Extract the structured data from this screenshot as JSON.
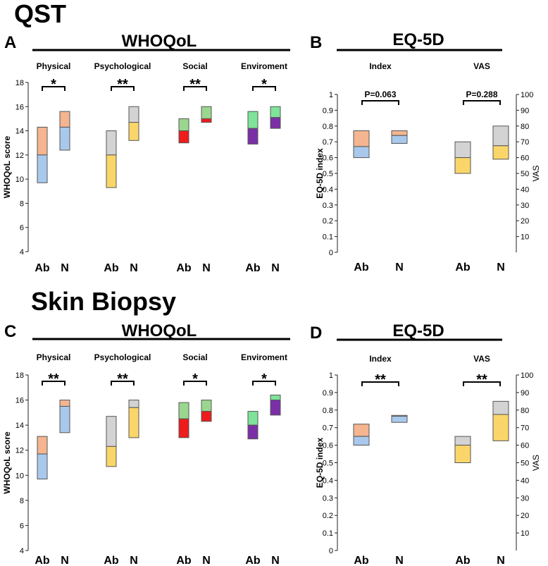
{
  "section_titles": {
    "qst": "QST",
    "biopsy": "Skin Biopsy"
  },
  "panel_letters": {
    "a": "A",
    "b": "B",
    "c": "C",
    "d": "D"
  },
  "panel_headers": {
    "a": "WHOQoL",
    "b": "EQ-5D",
    "c": "WHOQoL",
    "d": "EQ-5D"
  },
  "colors": {
    "physical_upper": "#f4b590",
    "physical_lower": "#a9c9ec",
    "psych_upper": "#d3d3d3",
    "psych_lower": "#fad66a",
    "social_upper": "#9bd68f",
    "social_lower": "#ee1c1c",
    "env_upper": "#7fe39a",
    "env_lower": "#7b2fa6",
    "vas_upper": "#d3d3d3",
    "vas_lower": "#fad66a",
    "index_upper": "#f4b590",
    "index_lower": "#a9c9ec",
    "edge": "#555555"
  },
  "chart_data": [
    {
      "id": "A",
      "type": "box",
      "title": "WHOQoL",
      "ylabel": "WHOQoL  score",
      "ylim": [
        4,
        18
      ],
      "yticks": [
        "4",
        "6",
        "8",
        "10",
        "12",
        "14",
        "16",
        "18"
      ],
      "xlabels": [
        "Ab",
        "N"
      ],
      "groups": [
        {
          "name": "Physical",
          "sig": "*",
          "colors": [
            "physical_lower",
            "physical_upper"
          ],
          "boxes": [
            {
              "x": "Ab",
              "q1": 9.7,
              "median": 12.0,
              "q3": 14.3
            },
            {
              "x": "N",
              "q1": 12.4,
              "median": 14.3,
              "q3": 15.6
            }
          ]
        },
        {
          "name": "Psychological",
          "sig": "**",
          "colors": [
            "psych_lower",
            "psych_upper"
          ],
          "boxes": [
            {
              "x": "Ab",
              "q1": 9.3,
              "median": 12.0,
              "q3": 14.0
            },
            {
              "x": "N",
              "q1": 13.2,
              "median": 14.7,
              "q3": 16.0
            }
          ]
        },
        {
          "name": "Social",
          "sig": "**",
          "colors": [
            "social_lower",
            "social_upper"
          ],
          "boxes": [
            {
              "x": "Ab",
              "q1": 13.0,
              "median": 14.0,
              "q3": 15.0
            },
            {
              "x": "N",
              "q1": 14.7,
              "median": 15.0,
              "q3": 16.0
            }
          ]
        },
        {
          "name": "Enviroment",
          "sig": "*",
          "colors": [
            "env_lower",
            "env_upper"
          ],
          "boxes": [
            {
              "x": "Ab",
              "q1": 12.9,
              "median": 14.2,
              "q3": 15.6
            },
            {
              "x": "N",
              "q1": 14.2,
              "median": 15.1,
              "q3": 16.0
            }
          ]
        }
      ]
    },
    {
      "id": "B",
      "type": "box",
      "title": "EQ-5D",
      "ylabel": "EQ-5D index",
      "ylabel_right": "VAS",
      "ylim": [
        0,
        1
      ],
      "ylim_right": [
        0,
        100
      ],
      "yticks": [
        "0",
        "0.1",
        "0.2",
        "0.3",
        "0.4",
        "0.5",
        "0.6",
        "0.7",
        "0.8",
        "0.9",
        "1"
      ],
      "yticks_right": [
        "10",
        "20",
        "30",
        "40",
        "50",
        "60",
        "70",
        "80",
        "90",
        "100"
      ],
      "xlabels": [
        "Ab",
        "N"
      ],
      "groups": [
        {
          "name": "Index",
          "sig": "P=0.063",
          "colors": [
            "index_lower",
            "index_upper"
          ],
          "boxes": [
            {
              "x": "Ab",
              "q1": 0.6,
              "median": 0.67,
              "q3": 0.77
            },
            {
              "x": "N",
              "q1": 0.69,
              "median": 0.74,
              "q3": 0.77
            }
          ]
        },
        {
          "name": "VAS",
          "sig": "P=0.288",
          "colors": [
            "vas_lower",
            "vas_upper"
          ],
          "boxes": [
            {
              "x": "Ab",
              "q1": 50,
              "median": 60,
              "q3": 70
            },
            {
              "x": "N",
              "q1": 59,
              "median": 67.5,
              "q3": 80
            }
          ]
        }
      ]
    },
    {
      "id": "C",
      "type": "box",
      "title": "WHOQoL",
      "ylabel": "WHOQoL  score",
      "ylim": [
        4,
        18
      ],
      "yticks": [
        "4",
        "6",
        "8",
        "10",
        "12",
        "14",
        "16",
        "18"
      ],
      "xlabels": [
        "Ab",
        "N"
      ],
      "groups": [
        {
          "name": "Physical",
          "sig": "**",
          "colors": [
            "physical_lower",
            "physical_upper"
          ],
          "boxes": [
            {
              "x": "Ab",
              "q1": 9.7,
              "median": 11.7,
              "q3": 13.1
            },
            {
              "x": "N",
              "q1": 13.4,
              "median": 15.5,
              "q3": 16.0
            }
          ]
        },
        {
          "name": "Psychological",
          "sig": "**",
          "colors": [
            "psych_lower",
            "psych_upper"
          ],
          "boxes": [
            {
              "x": "Ab",
              "q1": 10.7,
              "median": 12.3,
              "q3": 14.7
            },
            {
              "x": "N",
              "q1": 13.0,
              "median": 15.4,
              "q3": 16.0
            }
          ]
        },
        {
          "name": "Social",
          "sig": "*",
          "colors": [
            "social_lower",
            "social_upper"
          ],
          "boxes": [
            {
              "x": "Ab",
              "q1": 13.0,
              "median": 14.5,
              "q3": 15.8
            },
            {
              "x": "N",
              "q1": 14.3,
              "median": 15.1,
              "q3": 16.0
            }
          ]
        },
        {
          "name": "Enviroment",
          "sig": "*",
          "colors": [
            "env_lower",
            "env_upper"
          ],
          "boxes": [
            {
              "x": "Ab",
              "q1": 12.9,
              "median": 14.0,
              "q3": 15.1
            },
            {
              "x": "N",
              "q1": 14.8,
              "median": 16.0,
              "q3": 16.4
            }
          ]
        }
      ]
    },
    {
      "id": "D",
      "type": "box",
      "title": "EQ-5D",
      "ylabel": "EQ-5D index",
      "ylabel_right": "VAS",
      "ylim": [
        0,
        1
      ],
      "ylim_right": [
        0,
        100
      ],
      "yticks": [
        "0",
        "0.1",
        "0.2",
        "0.3",
        "0.4",
        "0.5",
        "0.6",
        "0.7",
        "0.8",
        "0.9",
        "1"
      ],
      "yticks_right": [
        "10",
        "20",
        "30",
        "40",
        "50",
        "60",
        "70",
        "80",
        "90",
        "100"
      ],
      "xlabels": [
        "Ab",
        "N"
      ],
      "groups": [
        {
          "name": "Index",
          "sig": "**",
          "colors": [
            "index_lower",
            "index_upper"
          ],
          "boxes": [
            {
              "x": "Ab",
              "q1": 0.6,
              "median": 0.65,
              "q3": 0.72
            },
            {
              "x": "N",
              "q1": 0.73,
              "median": 0.765,
              "q3": 0.77
            }
          ]
        },
        {
          "name": "VAS",
          "sig": "**",
          "colors": [
            "vas_lower",
            "vas_upper"
          ],
          "boxes": [
            {
              "x": "Ab",
              "q1": 50,
              "median": 60,
              "q3": 65
            },
            {
              "x": "N",
              "q1": 62.5,
              "median": 77.5,
              "q3": 85
            }
          ]
        }
      ]
    }
  ]
}
